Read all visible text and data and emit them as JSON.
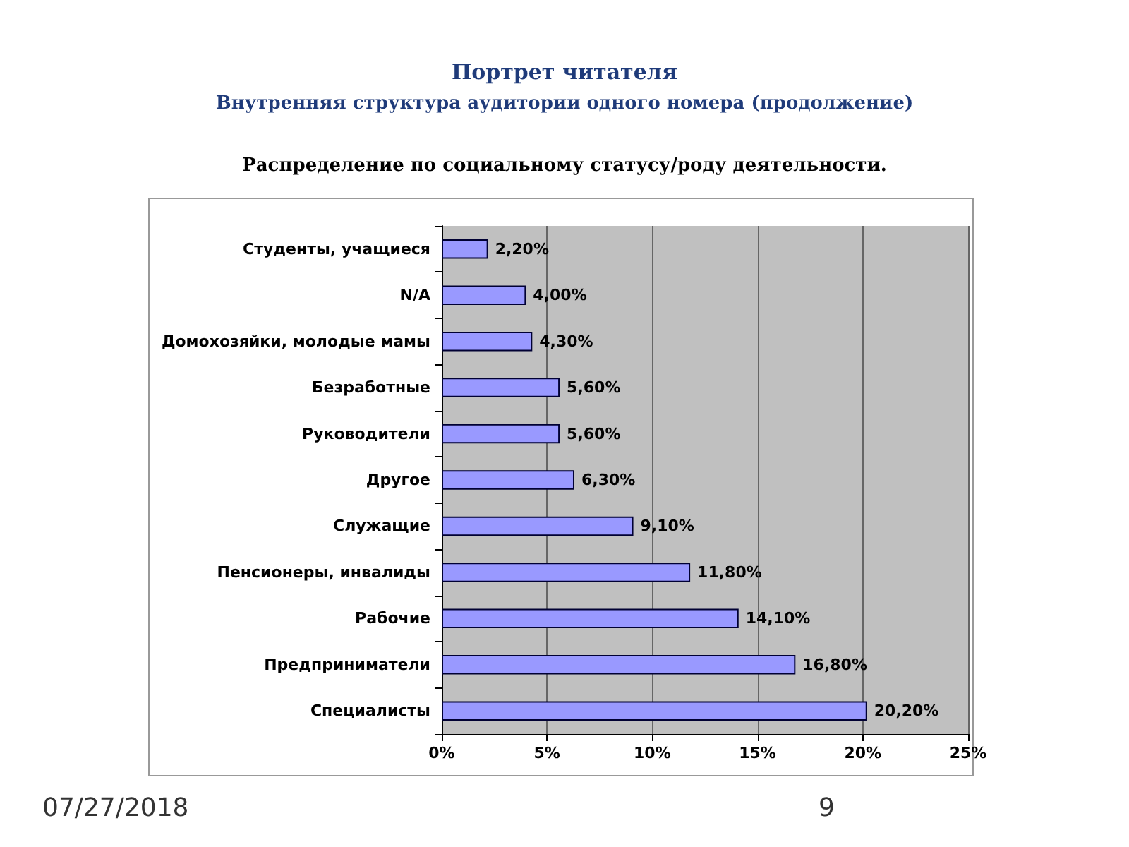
{
  "chart_data": {
    "type": "bar",
    "orientation": "horizontal",
    "title": "Портрет читателя",
    "subtitle": "Внутренняя структура аудитории одного номера (продолжение)",
    "annotations": [
      "Распределение по социальному статусу/роду деятельности.",
      "07/27/2018",
      "9"
    ],
    "categories": [
      "Студенты, учащиеся",
      "N/A",
      "Домохозяйки, молодые мамы",
      "Безработные",
      "Руководители",
      "Другое",
      "Служащие",
      "Пенсионеры, инвалиды",
      "Рабочие",
      "Предприниматели",
      "Специалисты"
    ],
    "values": [
      2.2,
      4.0,
      4.3,
      5.6,
      5.6,
      6.3,
      9.1,
      11.8,
      14.1,
      16.8,
      20.2
    ],
    "value_labels": [
      "2,20%",
      "4,00%",
      "4,30%",
      "5,60%",
      "5,60%",
      "6,30%",
      "9,10%",
      "11,80%",
      "14,10%",
      "16,80%",
      "20,20%"
    ],
    "color": "#9999ff",
    "xlim": [
      0,
      25
    ],
    "xticks": [
      {
        "value": 0,
        "label": "0%"
      },
      {
        "value": 5,
        "label": "5%"
      },
      {
        "value": 10,
        "label": "10%"
      },
      {
        "value": 15,
        "label": "15%"
      },
      {
        "value": 20,
        "label": "20%"
      },
      {
        "value": 25,
        "label": "25%"
      }
    ],
    "grid": "x"
  }
}
